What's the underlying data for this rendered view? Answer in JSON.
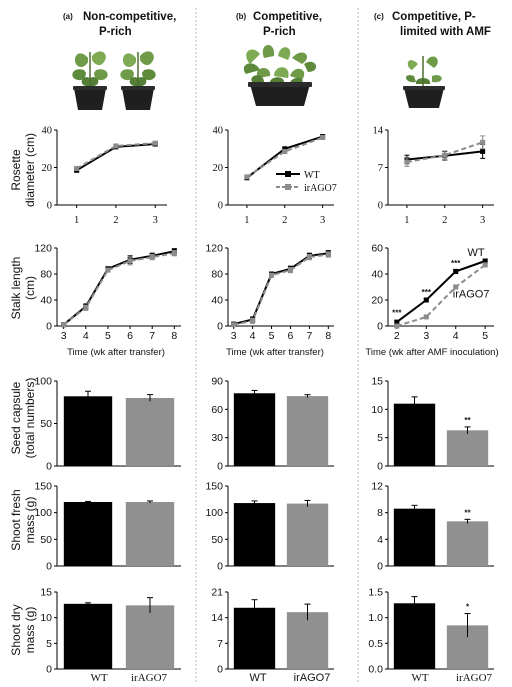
{
  "columns": [
    {
      "letter": "(a)",
      "title_lines": [
        "Non-competitive,",
        "P-rich"
      ]
    },
    {
      "letter": "(b)",
      "title_lines": [
        "Competitive,",
        "P-rich"
      ]
    },
    {
      "letter": "(c)",
      "title_lines": [
        "Competitive, P-",
        "limited with AMF"
      ]
    }
  ],
  "row_labels": {
    "rosette": [
      "Rosette",
      "diameter (cm)"
    ],
    "stalk": [
      "Stalk length",
      "(cm)"
    ],
    "capsule": [
      "Seed capsule",
      "(total numbers)"
    ],
    "fresh": [
      "Shoot fresh",
      "mass (g)"
    ],
    "dry": [
      "Shoot dry",
      "mass (g)"
    ]
  },
  "x_titles": {
    "transfer": "Time (wk after transfer)",
    "amf": "Time (wk after AMF inoculation)"
  },
  "legend": {
    "wt": "WT",
    "ir": "irAGO7"
  },
  "bar_categories": [
    "WT",
    "irAGO7"
  ],
  "colors": {
    "wt": "#000000",
    "ir": "#909090",
    "ir_line": "#8c8c8c",
    "divider": "#bbbbbb"
  },
  "icons": [
    "potted-plant-pair-icon",
    "potted-plant-crowded-icon",
    "potted-plant-small-icon"
  ],
  "chart_data": [
    {
      "id": "rosette-a",
      "type": "line",
      "xlabel": "",
      "ylabel": "Rosette diameter (cm)",
      "xlim": [
        0.5,
        3.3
      ],
      "ylim": [
        0,
        40
      ],
      "yticks": [
        0,
        20,
        40
      ],
      "xticks": [
        1,
        2,
        3
      ],
      "series": [
        {
          "name": "WT",
          "x": [
            1,
            2,
            3
          ],
          "y": [
            18.5,
            31,
            32.5
          ],
          "err": [
            0.8,
            0.8,
            0.8
          ]
        },
        {
          "name": "irAGO7",
          "x": [
            1,
            2,
            3
          ],
          "y": [
            19.5,
            31.5,
            33
          ],
          "err": [
            0.8,
            0.8,
            0.8
          ]
        }
      ]
    },
    {
      "id": "rosette-b",
      "type": "line",
      "xlabel": "",
      "ylabel": "",
      "xlim": [
        0.5,
        3.3
      ],
      "ylim": [
        0,
        40
      ],
      "yticks": [
        0,
        20,
        40
      ],
      "xticks": [
        1,
        2,
        3
      ],
      "series": [
        {
          "name": "WT",
          "x": [
            1,
            2,
            3
          ],
          "y": [
            14.5,
            30,
            36.5
          ],
          "err": [
            0.6,
            0.7,
            0.6
          ]
        },
        {
          "name": "irAGO7",
          "x": [
            1,
            2,
            3
          ],
          "y": [
            15,
            28.5,
            36
          ],
          "err": [
            0.6,
            0.7,
            0.6
          ]
        }
      ]
    },
    {
      "id": "rosette-c",
      "type": "line",
      "xlabel": "",
      "ylabel": "",
      "xlim": [
        0.5,
        3.3
      ],
      "ylim": [
        0,
        14
      ],
      "yticks": [
        0,
        7,
        14
      ],
      "xticks": [
        1,
        2,
        3
      ],
      "series": [
        {
          "name": "WT",
          "x": [
            1,
            2,
            3
          ],
          "y": [
            8.5,
            9.2,
            10
          ],
          "err": [
            0.8,
            0.8,
            1.3
          ]
        },
        {
          "name": "irAGO7",
          "x": [
            1,
            2,
            3
          ],
          "y": [
            8.0,
            9.3,
            11.7
          ],
          "err": [
            0.8,
            0.8,
            1.2
          ]
        }
      ]
    },
    {
      "id": "stalk-a",
      "type": "line",
      "xlabel": "Time (wk after transfer)",
      "ylabel": "Stalk length (cm)",
      "xlim": [
        2.7,
        8.3
      ],
      "ylim": [
        0,
        120
      ],
      "yticks": [
        0,
        40,
        80,
        120
      ],
      "xticks": [
        3,
        4,
        5,
        6,
        7,
        8
      ],
      "series": [
        {
          "name": "WT",
          "x": [
            3,
            4,
            5,
            6,
            7,
            8
          ],
          "y": [
            2,
            30,
            88,
            102,
            108,
            115
          ],
          "err": [
            1,
            4,
            3,
            6,
            4,
            4
          ]
        },
        {
          "name": "irAGO7",
          "x": [
            3,
            4,
            5,
            6,
            7,
            8
          ],
          "y": [
            2,
            28,
            86,
            100,
            106,
            112
          ],
          "err": [
            1,
            4,
            3,
            6,
            4,
            4
          ]
        }
      ]
    },
    {
      "id": "stalk-b",
      "type": "line",
      "xlabel": "Time (wk after transfer)",
      "ylabel": "",
      "xlim": [
        2.7,
        8.3
      ],
      "ylim": [
        0,
        120
      ],
      "yticks": [
        0,
        40,
        80,
        120
      ],
      "xticks": [
        3,
        4,
        5,
        6,
        7,
        8
      ],
      "series": [
        {
          "name": "WT",
          "x": [
            3,
            4,
            5,
            6,
            7,
            8
          ],
          "y": [
            3,
            10,
            80,
            88,
            108,
            112
          ],
          "err": [
            1,
            4,
            3,
            4,
            4,
            4
          ]
        },
        {
          "name": "irAGO7",
          "x": [
            3,
            4,
            5,
            6,
            7,
            8
          ],
          "y": [
            2,
            8,
            78,
            86,
            106,
            110
          ],
          "err": [
            1,
            4,
            3,
            4,
            4,
            4
          ]
        }
      ]
    },
    {
      "id": "stalk-c",
      "type": "line",
      "xlabel": "Time (wk after AMF inoculation)",
      "ylabel": "",
      "xlim": [
        1.7,
        5.3
      ],
      "ylim": [
        0,
        60
      ],
      "yticks": [
        0,
        20,
        40,
        60
      ],
      "xticks": [
        2,
        3,
        4,
        5
      ],
      "series": [
        {
          "name": "WT",
          "x": [
            2,
            3,
            4,
            5
          ],
          "y": [
            3,
            20,
            42,
            50
          ],
          "err": [
            1,
            1,
            1.5,
            1.5
          ]
        },
        {
          "name": "irAGO7",
          "x": [
            2,
            3,
            4,
            5
          ],
          "y": [
            0,
            7,
            30,
            47
          ],
          "err": [
            0.5,
            1,
            1.5,
            1.5
          ]
        }
      ],
      "annotations": [
        {
          "text": "***",
          "x": 2,
          "y": 8
        },
        {
          "text": "***",
          "x": 3,
          "y": 24
        },
        {
          "text": "***",
          "x": 4,
          "y": 46
        },
        {
          "text": "WT",
          "x": 4.4,
          "y": 54
        },
        {
          "text": "irAGO7",
          "x": 3.9,
          "y": 22
        }
      ]
    },
    {
      "id": "capsule-a",
      "type": "bar",
      "categories": [
        "WT",
        "irAGO7"
      ],
      "values": [
        82,
        80
      ],
      "err": [
        6,
        4
      ],
      "ylim": [
        0,
        100
      ],
      "yticks": [
        0,
        50,
        100
      ],
      "ylabel": "Seed capsule (total numbers)"
    },
    {
      "id": "capsule-b",
      "type": "bar",
      "categories": [
        "WT",
        "irAGO7"
      ],
      "values": [
        77,
        74
      ],
      "err": [
        3,
        1.5
      ],
      "ylim": [
        0,
        90
      ],
      "yticks": [
        0,
        30,
        60,
        90
      ],
      "ylabel": ""
    },
    {
      "id": "capsule-c",
      "type": "bar",
      "categories": [
        "WT",
        "irAGO7"
      ],
      "values": [
        11,
        6.3
      ],
      "err": [
        1.2,
        0.6
      ],
      "ylim": [
        0,
        15
      ],
      "yticks": [
        0,
        5,
        10,
        15
      ],
      "ylabel": "",
      "sig": "**"
    },
    {
      "id": "fresh-a",
      "type": "bar",
      "categories": [
        "WT",
        "irAGO7"
      ],
      "values": [
        120,
        120
      ],
      "err": [
        1,
        2
      ],
      "ylim": [
        0,
        150
      ],
      "yticks": [
        0,
        50,
        100,
        150
      ],
      "ylabel": "Shoot fresh mass (g)"
    },
    {
      "id": "fresh-b",
      "type": "bar",
      "categories": [
        "WT",
        "irAGO7"
      ],
      "values": [
        118,
        117
      ],
      "err": [
        4,
        6
      ],
      "ylim": [
        0,
        150
      ],
      "yticks": [
        0,
        50,
        100,
        150
      ],
      "ylabel": ""
    },
    {
      "id": "fresh-c",
      "type": "bar",
      "categories": [
        "WT",
        "irAGO7"
      ],
      "values": [
        8.6,
        6.7
      ],
      "err": [
        0.5,
        0.3
      ],
      "ylim": [
        0,
        12
      ],
      "yticks": [
        0,
        4,
        8,
        12
      ],
      "ylabel": "",
      "sig": "**"
    },
    {
      "id": "dry-a",
      "type": "bar",
      "categories": [
        "WT",
        "irAGO7"
      ],
      "values": [
        12.7,
        12.4
      ],
      "err": [
        0.2,
        1.5
      ],
      "ylim": [
        0,
        15
      ],
      "yticks": [
        0,
        5,
        10,
        15
      ],
      "ylabel": "Shoot dry mass (g)"
    },
    {
      "id": "dry-b",
      "type": "bar",
      "categories": [
        "WT",
        "irAGO7"
      ],
      "values": [
        16.7,
        15.5
      ],
      "err": [
        2.2,
        2.2
      ],
      "ylim": [
        0,
        21
      ],
      "yticks": [
        0,
        7,
        14,
        21
      ],
      "ylabel": ""
    },
    {
      "id": "dry-c",
      "type": "bar",
      "categories": [
        "WT",
        "irAGO7"
      ],
      "values": [
        1.28,
        0.85
      ],
      "err": [
        0.13,
        0.23
      ],
      "ylim": [
        0,
        1.5
      ],
      "yticks": [
        0,
        0.5,
        1.0,
        1.5
      ],
      "ylabel": "",
      "sig": "*",
      "tick_decimals": 1
    }
  ]
}
